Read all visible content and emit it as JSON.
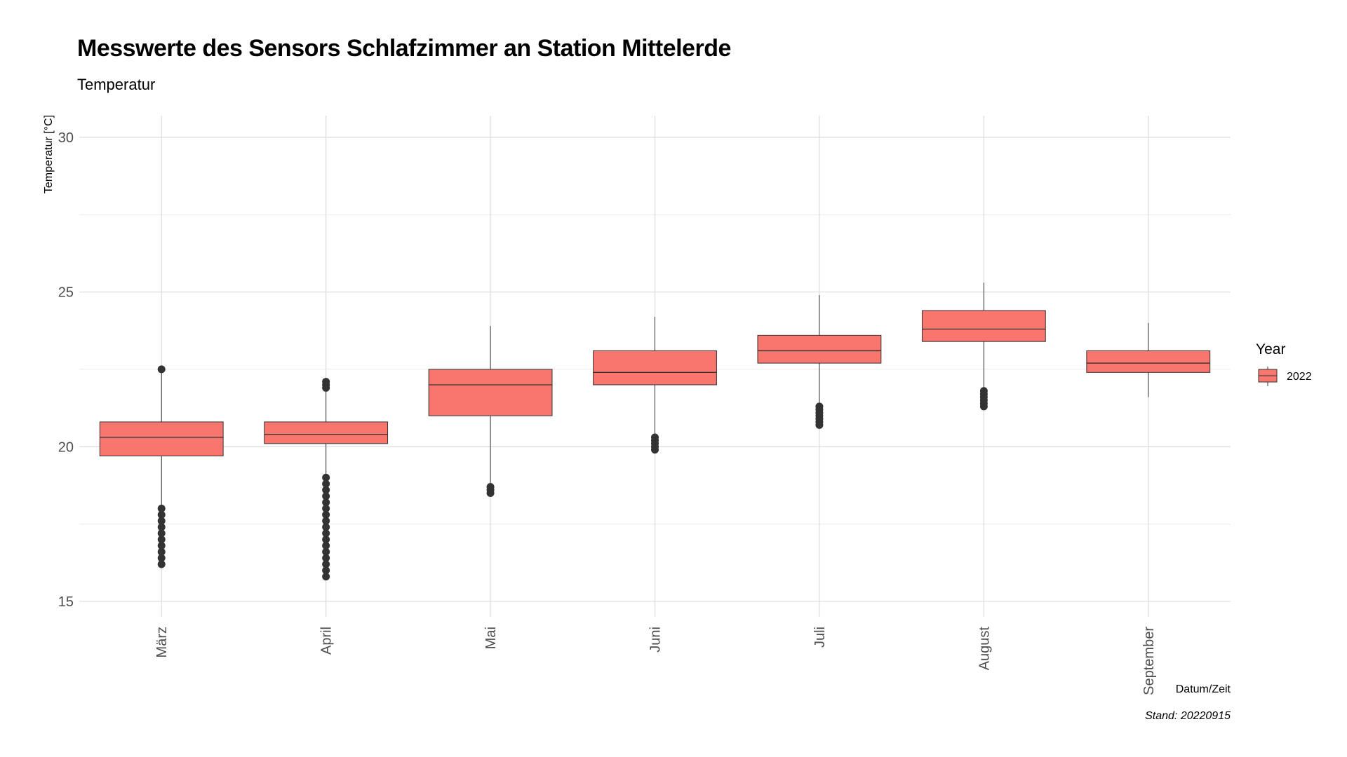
{
  "chart_data": {
    "type": "box",
    "title": "Messwerte des Sensors Schlafzimmer an Station Mittelerde",
    "subtitle": "Temperatur",
    "xlabel": "Datum/Zeit",
    "ylabel": "Temperatur [°C]",
    "caption": "Stand: 20220915",
    "ylim": [
      14.5,
      30.7
    ],
    "yticks": [
      15,
      20,
      25,
      30
    ],
    "grid": true,
    "legend": {
      "title": "Year",
      "position": "right",
      "entries": [
        "2022"
      ]
    },
    "fill_color": "#F8766D",
    "outline_color": "#333333",
    "categories": [
      "März",
      "April",
      "Mai",
      "Juni",
      "Juli",
      "August",
      "September"
    ],
    "series": [
      {
        "name": "2022",
        "boxes": [
          {
            "whisker_low": 18.0,
            "q1": 19.7,
            "median": 20.3,
            "q3": 20.8,
            "whisker_high": 22.4,
            "outliers": [
              16.2,
              16.4,
              16.6,
              16.8,
              17.0,
              17.2,
              17.4,
              17.6,
              17.8,
              18.0,
              22.5
            ]
          },
          {
            "whisker_low": 19.0,
            "q1": 20.1,
            "median": 20.4,
            "q3": 20.8,
            "whisker_high": 21.8,
            "outliers": [
              15.8,
              16.0,
              16.2,
              16.4,
              16.6,
              16.8,
              17.0,
              17.2,
              17.4,
              17.6,
              17.8,
              18.0,
              18.2,
              18.4,
              18.6,
              18.8,
              19.0,
              21.9,
              22.0,
              22.1
            ]
          },
          {
            "whisker_low": 18.8,
            "q1": 21.0,
            "median": 22.0,
            "q3": 22.5,
            "whisker_high": 23.9,
            "outliers": [
              18.5,
              18.6,
              18.7
            ]
          },
          {
            "whisker_low": 20.4,
            "q1": 22.0,
            "median": 22.4,
            "q3": 23.1,
            "whisker_high": 24.2,
            "outliers": [
              19.9,
              20.0,
              20.1,
              20.2,
              20.3
            ]
          },
          {
            "whisker_low": 21.4,
            "q1": 22.7,
            "median": 23.1,
            "q3": 23.6,
            "whisker_high": 24.9,
            "outliers": [
              20.7,
              20.8,
              20.9,
              21.0,
              21.1,
              21.2,
              21.3
            ]
          },
          {
            "whisker_low": 21.9,
            "q1": 23.4,
            "median": 23.8,
            "q3": 24.4,
            "whisker_high": 25.3,
            "outliers": [
              21.3,
              21.4,
              21.5,
              21.6,
              21.7,
              21.8
            ]
          },
          {
            "whisker_low": 21.6,
            "q1": 22.4,
            "median": 22.7,
            "q3": 23.1,
            "whisker_high": 24.0,
            "outliers": []
          }
        ]
      }
    ]
  }
}
